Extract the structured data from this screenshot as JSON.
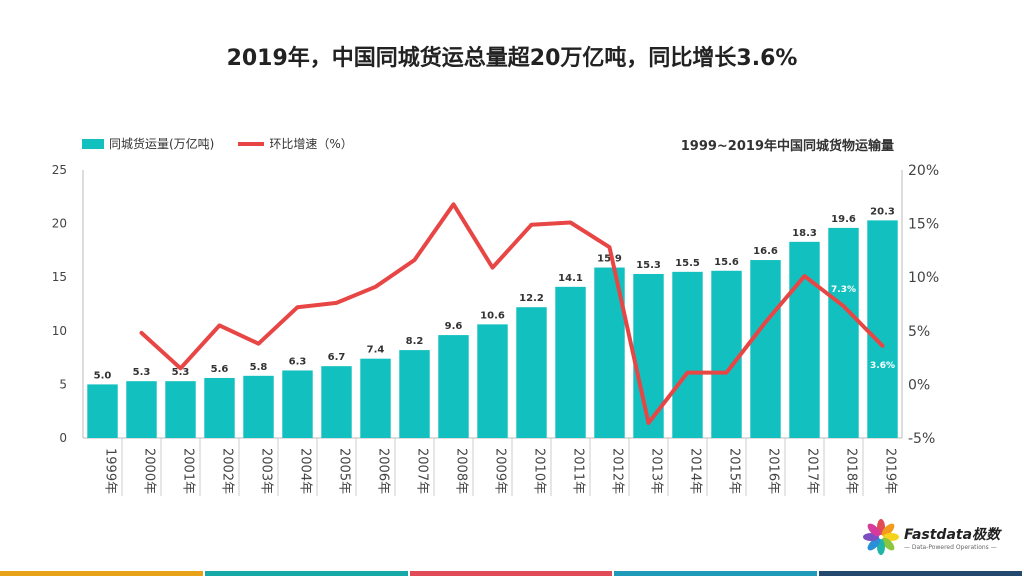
{
  "page": {
    "title": "2019年，中国同城货运总量超20万亿吨，同比增长3.6%",
    "caption": "1999~2019年中国同城货物运输量",
    "brand_name": "Fastdata极数",
    "brand_tagline": "— Data-Powered Operations —",
    "footer_colors": [
      "#e8a21a",
      "#17a8a8",
      "#e14b57",
      "#1f9ab8",
      "#234a6e"
    ]
  },
  "chart_data": {
    "type": "bar",
    "title": "1999~2019年中国同城货物运输量",
    "categories": [
      "1999年",
      "2000年",
      "2001年",
      "2002年",
      "2003年",
      "2004年",
      "2005年",
      "2006年",
      "2007年",
      "2008年",
      "2009年",
      "2010年",
      "2011年",
      "2012年",
      "2013年",
      "2014年",
      "2015年",
      "2016年",
      "2017年",
      "2018年",
      "2019年"
    ],
    "series": [
      {
        "name": "同城货运量(万亿吨)",
        "type": "bar",
        "color": "#12c0c0",
        "axis": "left",
        "values": [
          5.0,
          5.3,
          5.3,
          5.6,
          5.8,
          6.3,
          6.7,
          7.4,
          8.2,
          9.6,
          10.6,
          12.2,
          14.1,
          15.9,
          15.3,
          15.5,
          15.6,
          16.6,
          18.3,
          19.6,
          20.3
        ],
        "value_labels": [
          "5.0",
          "5.3",
          "5.3",
          "5.6",
          "5.8",
          "6.3",
          "6.7",
          "7.4",
          "8.2",
          "9.6",
          "10.6",
          "12.2",
          "14.1",
          "15.9",
          "15.3",
          "15.5",
          "15.6",
          "16.6",
          "18.3",
          "19.6",
          "20.3"
        ]
      },
      {
        "name": "环比增速（%）",
        "type": "line",
        "color": "#e84545",
        "axis": "right",
        "values": [
          null,
          4.8,
          1.5,
          5.5,
          3.8,
          7.2,
          7.6,
          9.1,
          11.6,
          16.8,
          10.9,
          14.9,
          15.1,
          12.8,
          -3.6,
          1.1,
          1.1,
          5.8,
          10.1,
          7.3,
          3.6
        ],
        "point_labels": [
          {
            "index": 19,
            "text": "7.3%"
          },
          {
            "index": 20,
            "text": "3.6%"
          }
        ]
      }
    ],
    "y_left": {
      "min": 0,
      "max": 25,
      "ticks": [
        0,
        5,
        10,
        15,
        20,
        25
      ],
      "tick_labels": [
        "0",
        "5",
        "10",
        "15",
        "20",
        "25"
      ]
    },
    "y_right": {
      "min": -5,
      "max": 20,
      "ticks": [
        -5,
        0,
        5,
        10,
        15,
        20
      ],
      "tick_labels": [
        "-5%",
        "0%",
        "5%",
        "10%",
        "15%",
        "20%"
      ]
    },
    "grid": false,
    "legend_position": "top-left"
  }
}
